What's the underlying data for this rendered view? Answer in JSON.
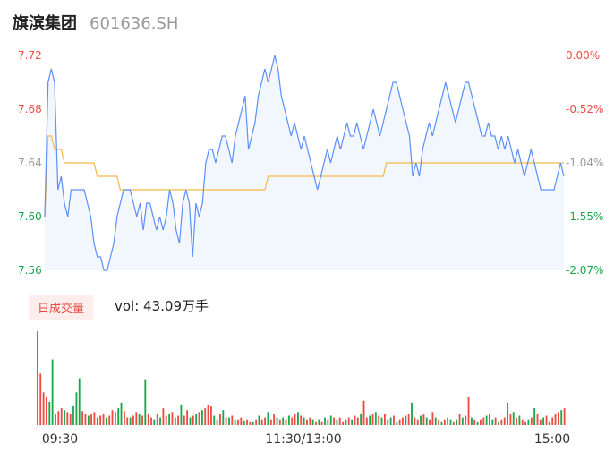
{
  "header": {
    "stock_name": "旗滨集团",
    "stock_code": "601636.SH"
  },
  "volume_panel": {
    "tab_label": "日成交量",
    "vol_label": "vol: 43.09万手"
  },
  "colors": {
    "price_line": "#5b8ff9",
    "avg_line": "#f5b945",
    "up": "#f04a42",
    "down": "#18a84a",
    "area": "#f2f6fd"
  },
  "chart_data": [
    {
      "type": "line",
      "title": "",
      "ylim": [
        7.56,
        7.72
      ],
      "y_ticks": [
        "7.72",
        "7.68",
        "7.64",
        "7.60",
        "7.56"
      ],
      "pct_ticks": [
        "0.00%",
        "-0.52%",
        "-1.04%",
        "-1.55%",
        "-2.07%"
      ],
      "series": [
        {
          "values": [
            7.6,
            7.7,
            7.71,
            7.7,
            7.62,
            7.63,
            7.61,
            7.6,
            7.62,
            7.62,
            7.62,
            7.62,
            7.62,
            7.61,
            7.6,
            7.58,
            7.57,
            7.57,
            7.56,
            7.56,
            7.57,
            7.58,
            7.6,
            7.61,
            7.62,
            7.62,
            7.62,
            7.61,
            7.6,
            7.61,
            7.59,
            7.61,
            7.61,
            7.6,
            7.59,
            7.6,
            7.59,
            7.6,
            7.62,
            7.61,
            7.59,
            7.58,
            7.61,
            7.62,
            7.61,
            7.57,
            7.61,
            7.6,
            7.61,
            7.64,
            7.65,
            7.65,
            7.64,
            7.65,
            7.66,
            7.66,
            7.65,
            7.64,
            7.66,
            7.67,
            7.68,
            7.69,
            7.65,
            7.66,
            7.67,
            7.69,
            7.7,
            7.71,
            7.7,
            7.71,
            7.72,
            7.71,
            7.69,
            7.68,
            7.67,
            7.66,
            7.67,
            7.66,
            7.65,
            7.66,
            7.65,
            7.64,
            7.63,
            7.62,
            7.63,
            7.64,
            7.65,
            7.64,
            7.65,
            7.66,
            7.65,
            7.66,
            7.67,
            7.66,
            7.66,
            7.67,
            7.66,
            7.65,
            7.66,
            7.67,
            7.68,
            7.67,
            7.66,
            7.67,
            7.68,
            7.69,
            7.7,
            7.7,
            7.69,
            7.68,
            7.67,
            7.66,
            7.63,
            7.64,
            7.63,
            7.65,
            7.66,
            7.67,
            7.66,
            7.67,
            7.68,
            7.69,
            7.7,
            7.69,
            7.68,
            7.67,
            7.68,
            7.69,
            7.7,
            7.7,
            7.69,
            7.68,
            7.67,
            7.66,
            7.66,
            7.67,
            7.66,
            7.66,
            7.65,
            7.66,
            7.65,
            7.66,
            7.65,
            7.64,
            7.65,
            7.64,
            7.63,
            7.64,
            7.65,
            7.64,
            7.63,
            7.62,
            7.62,
            7.62,
            7.62,
            7.62,
            7.63,
            7.64,
            7.63
          ]
        },
        {
          "values": [
            7.6,
            7.66,
            7.66,
            7.65,
            7.65,
            7.65,
            7.64,
            7.64,
            7.64,
            7.64,
            7.64,
            7.64,
            7.64,
            7.64,
            7.64,
            7.64,
            7.63,
            7.63,
            7.63,
            7.63,
            7.63,
            7.63,
            7.63,
            7.62,
            7.62,
            7.62,
            7.62,
            7.62,
            7.62,
            7.62,
            7.62,
            7.62,
            7.62,
            7.62,
            7.62,
            7.62,
            7.62,
            7.62,
            7.62,
            7.62,
            7.62,
            7.62,
            7.62,
            7.62,
            7.62,
            7.62,
            7.62,
            7.62,
            7.62,
            7.62,
            7.62,
            7.62,
            7.62,
            7.62,
            7.62,
            7.62,
            7.62,
            7.62,
            7.62,
            7.62,
            7.62,
            7.62,
            7.62,
            7.62,
            7.62,
            7.62,
            7.62,
            7.62,
            7.63,
            7.63,
            7.63,
            7.63,
            7.63,
            7.63,
            7.63,
            7.63,
            7.63,
            7.63,
            7.63,
            7.63,
            7.63,
            7.63,
            7.63,
            7.63,
            7.63,
            7.63,
            7.63,
            7.63,
            7.63,
            7.63,
            7.63,
            7.63,
            7.63,
            7.63,
            7.63,
            7.63,
            7.63,
            7.63,
            7.63,
            7.63,
            7.63,
            7.63,
            7.63,
            7.63,
            7.64,
            7.64,
            7.64,
            7.64,
            7.64,
            7.64,
            7.64,
            7.64,
            7.64,
            7.64,
            7.64,
            7.64,
            7.64,
            7.64,
            7.64,
            7.64,
            7.64,
            7.64,
            7.64,
            7.64,
            7.64,
            7.64,
            7.64,
            7.64,
            7.64,
            7.64,
            7.64,
            7.64,
            7.64,
            7.64,
            7.64,
            7.64,
            7.64,
            7.64,
            7.64,
            7.64,
            7.64,
            7.64,
            7.64,
            7.64,
            7.64,
            7.64,
            7.64,
            7.64,
            7.64,
            7.64,
            7.64,
            7.64,
            7.64,
            7.64,
            7.64,
            7.64,
            7.64,
            7.64,
            7.64
          ]
        }
      ]
    },
    {
      "type": "bar",
      "title": "",
      "x_ticks": [
        "09:30",
        "11:30/13:00",
        "15:00"
      ],
      "values": [
        100,
        55,
        35,
        30,
        25,
        70,
        12,
        15,
        18,
        16,
        14,
        12,
        20,
        35,
        50,
        15,
        12,
        10,
        12,
        14,
        8,
        10,
        12,
        8,
        10,
        16,
        14,
        18,
        24,
        15,
        8,
        8,
        10,
        14,
        12,
        10,
        48,
        12,
        8,
        6,
        12,
        8,
        18,
        10,
        12,
        14,
        8,
        10,
        22,
        10,
        16,
        8,
        10,
        12,
        14,
        16,
        18,
        22,
        20,
        10,
        6,
        12,
        16,
        8,
        8,
        10,
        6,
        6,
        8,
        5,
        6,
        4,
        4,
        6,
        10,
        6,
        8,
        14,
        6,
        12,
        8,
        6,
        8,
        6,
        10,
        8,
        12,
        14,
        10,
        8,
        6,
        8,
        6,
        4,
        6,
        4,
        8,
        6,
        10,
        8,
        6,
        8,
        4,
        6,
        8,
        6,
        10,
        8,
        12,
        26,
        8,
        10,
        12,
        14,
        10,
        8,
        12,
        6,
        8,
        10,
        4,
        6,
        8,
        10,
        12,
        24,
        8,
        6,
        10,
        12,
        8,
        6,
        14,
        8,
        6,
        4,
        6,
        8,
        6,
        4,
        6,
        12,
        8,
        10,
        30,
        8,
        6,
        4,
        6,
        8,
        10,
        12,
        6,
        8,
        4,
        6,
        8,
        24,
        12,
        14,
        8,
        10,
        6,
        4,
        6,
        8,
        18,
        12,
        6,
        8,
        10,
        4,
        8,
        12,
        14,
        16,
        18
      ],
      "directions": [
        "up",
        "up",
        "up",
        "up",
        "down",
        "down",
        "up",
        "up",
        "up",
        "down",
        "up",
        "up",
        "down",
        "down",
        "down",
        "up",
        "up",
        "down",
        "up",
        "up",
        "down",
        "up",
        "up",
        "down",
        "up",
        "up",
        "up",
        "down",
        "down",
        "up",
        "up",
        "down",
        "up",
        "up",
        "down",
        "up",
        "down",
        "up",
        "up",
        "down",
        "up",
        "down",
        "up",
        "up",
        "down",
        "up",
        "down",
        "up",
        "down",
        "up",
        "up",
        "down",
        "up",
        "down",
        "up",
        "down",
        "up",
        "up",
        "up",
        "down",
        "up",
        "up",
        "down",
        "up",
        "down",
        "up",
        "down",
        "up",
        "up",
        "down",
        "up",
        "up",
        "down",
        "up",
        "down",
        "up",
        "up",
        "down",
        "up",
        "up",
        "down",
        "up",
        "down",
        "up",
        "down",
        "up",
        "up",
        "down",
        "up",
        "down",
        "up",
        "up",
        "down",
        "up",
        "down",
        "up",
        "down",
        "up",
        "down",
        "up",
        "down",
        "up",
        "up",
        "down",
        "up",
        "down",
        "up",
        "up",
        "down",
        "up",
        "up",
        "down",
        "up",
        "down",
        "up",
        "down",
        "up",
        "up",
        "down",
        "up",
        "down",
        "up",
        "up",
        "down",
        "up",
        "down",
        "up",
        "up",
        "down",
        "up",
        "down",
        "up",
        "up",
        "down",
        "up",
        "down",
        "up",
        "up",
        "down",
        "up",
        "down",
        "up",
        "down",
        "up",
        "up",
        "down",
        "up",
        "down",
        "up",
        "up",
        "down",
        "up",
        "down",
        "up",
        "down",
        "up",
        "up",
        "down",
        "up",
        "down",
        "up",
        "down",
        "up",
        "up",
        "down",
        "up",
        "down",
        "up",
        "up",
        "down",
        "up",
        "down",
        "up",
        "up",
        "up",
        "down",
        "up"
      ]
    }
  ]
}
